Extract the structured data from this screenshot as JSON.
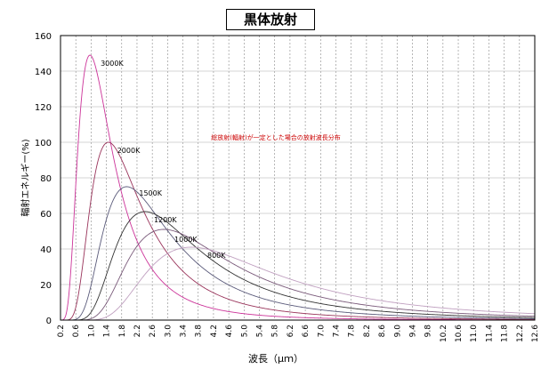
{
  "chart_data": {
    "type": "line",
    "title": "黒体放射",
    "xlabel": "波長（μｍ）",
    "ylabel": "輻射エネルギー(%)",
    "annotation": "総放射(輻射)が一定とした場合の放射波長分布",
    "annotation_color": "#cc0000",
    "xlim": [
      0.2,
      12.6
    ],
    "ylim": [
      0,
      160
    ],
    "x_tick_step": 0.4,
    "y_ticks": [
      0,
      20,
      40,
      60,
      80,
      100,
      120,
      140,
      160
    ],
    "x_tick_labels": [
      "0.2",
      "0.6",
      "1.0",
      "1.4",
      "1.8",
      "2.2",
      "2.6",
      "3.0",
      "3.4",
      "3.8",
      "4.2",
      "4.6",
      "5.0",
      "5.4",
      "5.8",
      "6.2",
      "6.6",
      "7.0",
      "7.4",
      "7.8",
      "8.2",
      "8.6",
      "9.0",
      "9.4",
      "9.8",
      "10.2",
      "10.6",
      "11.0",
      "11.4",
      "11.8",
      "12.2",
      "12.6"
    ],
    "grid": true,
    "legend": "none",
    "series": [
      {
        "name": "3000K",
        "temperature": 3000,
        "peak_x": 0.97,
        "peak_y": 149,
        "color": "#cc3399"
      },
      {
        "name": "2000K",
        "temperature": 2000,
        "peak_x": 1.45,
        "peak_y": 100,
        "color": "#99335a"
      },
      {
        "name": "1500K",
        "temperature": 1500,
        "peak_x": 1.93,
        "peak_y": 75,
        "color": "#5a5a7a"
      },
      {
        "name": "1200K",
        "temperature": 1200,
        "peak_x": 2.41,
        "peak_y": 61,
        "color": "#333333"
      },
      {
        "name": "1000K",
        "temperature": 1000,
        "peak_x": 2.9,
        "peak_y": 51,
        "color": "#7a5a7a"
      },
      {
        "name": "800K",
        "temperature": 800,
        "peak_x": 3.62,
        "peak_y": 41,
        "color": "#c0a0c0"
      }
    ]
  }
}
